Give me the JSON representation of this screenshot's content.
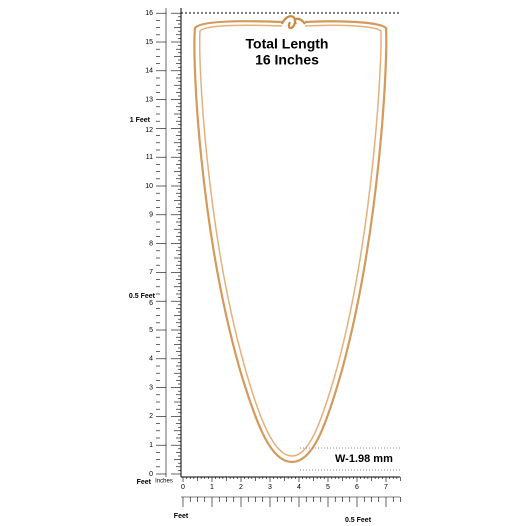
{
  "product": {
    "title": "Total Length",
    "length": "16 Inches",
    "width_label": "W-1.98 mm"
  },
  "vertical_ruler": {
    "unit_label": "Feet",
    "labels": [
      "0",
      "1",
      "2",
      "3",
      "4",
      "5",
      "6",
      "7",
      "8",
      "9",
      "10",
      "11",
      "12",
      "13",
      "14",
      "15",
      "16"
    ],
    "one_foot": "1 Feet",
    "half_foot": "0.5 Feet"
  },
  "horizontal_ruler": {
    "unit_label": "Inches",
    "labels": [
      "0",
      "1",
      "2",
      "3",
      "4",
      "5",
      "6",
      "7"
    ],
    "feet_label": "Feet",
    "half_foot": "0.5 Feet"
  }
}
